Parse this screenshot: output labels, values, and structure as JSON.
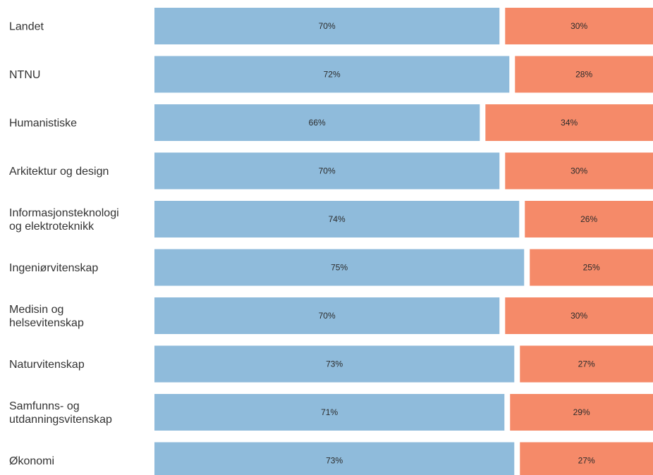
{
  "chart_data": {
    "type": "bar",
    "orientation": "horizontal",
    "stacked": "100%",
    "categories": [
      [
        "Landet"
      ],
      [
        "NTNU"
      ],
      [
        "Humanistiske"
      ],
      [
        "Arkitektur og design"
      ],
      [
        "Informasjonsteknologi",
        "og elektroteknikk"
      ],
      [
        "Ingeniørvitenskap"
      ],
      [
        "Medisin og",
        "helsevitenskap"
      ],
      [
        "Naturvitenskap"
      ],
      [
        "Samfunns- og",
        "utdanningsvitenskap"
      ],
      [
        "Økonomi"
      ]
    ],
    "series": [
      {
        "values": [
          70,
          72,
          66,
          70,
          74,
          75,
          70,
          73,
          71,
          73
        ],
        "labels": [
          "70%",
          "72%",
          "66%",
          "70%",
          "74%",
          "75%",
          "70%",
          "73%",
          "71%",
          "73%"
        ],
        "color": "#8fbbdb"
      },
      {
        "values": [
          30,
          28,
          34,
          30,
          26,
          25,
          30,
          27,
          29,
          27
        ],
        "labels": [
          "30%",
          "28%",
          "34%",
          "30%",
          "26%",
          "25%",
          "30%",
          "27%",
          "29%",
          "27%"
        ],
        "color": "#f58a69"
      }
    ],
    "xlim": [
      0,
      100
    ],
    "grid": false,
    "legend": "none"
  }
}
